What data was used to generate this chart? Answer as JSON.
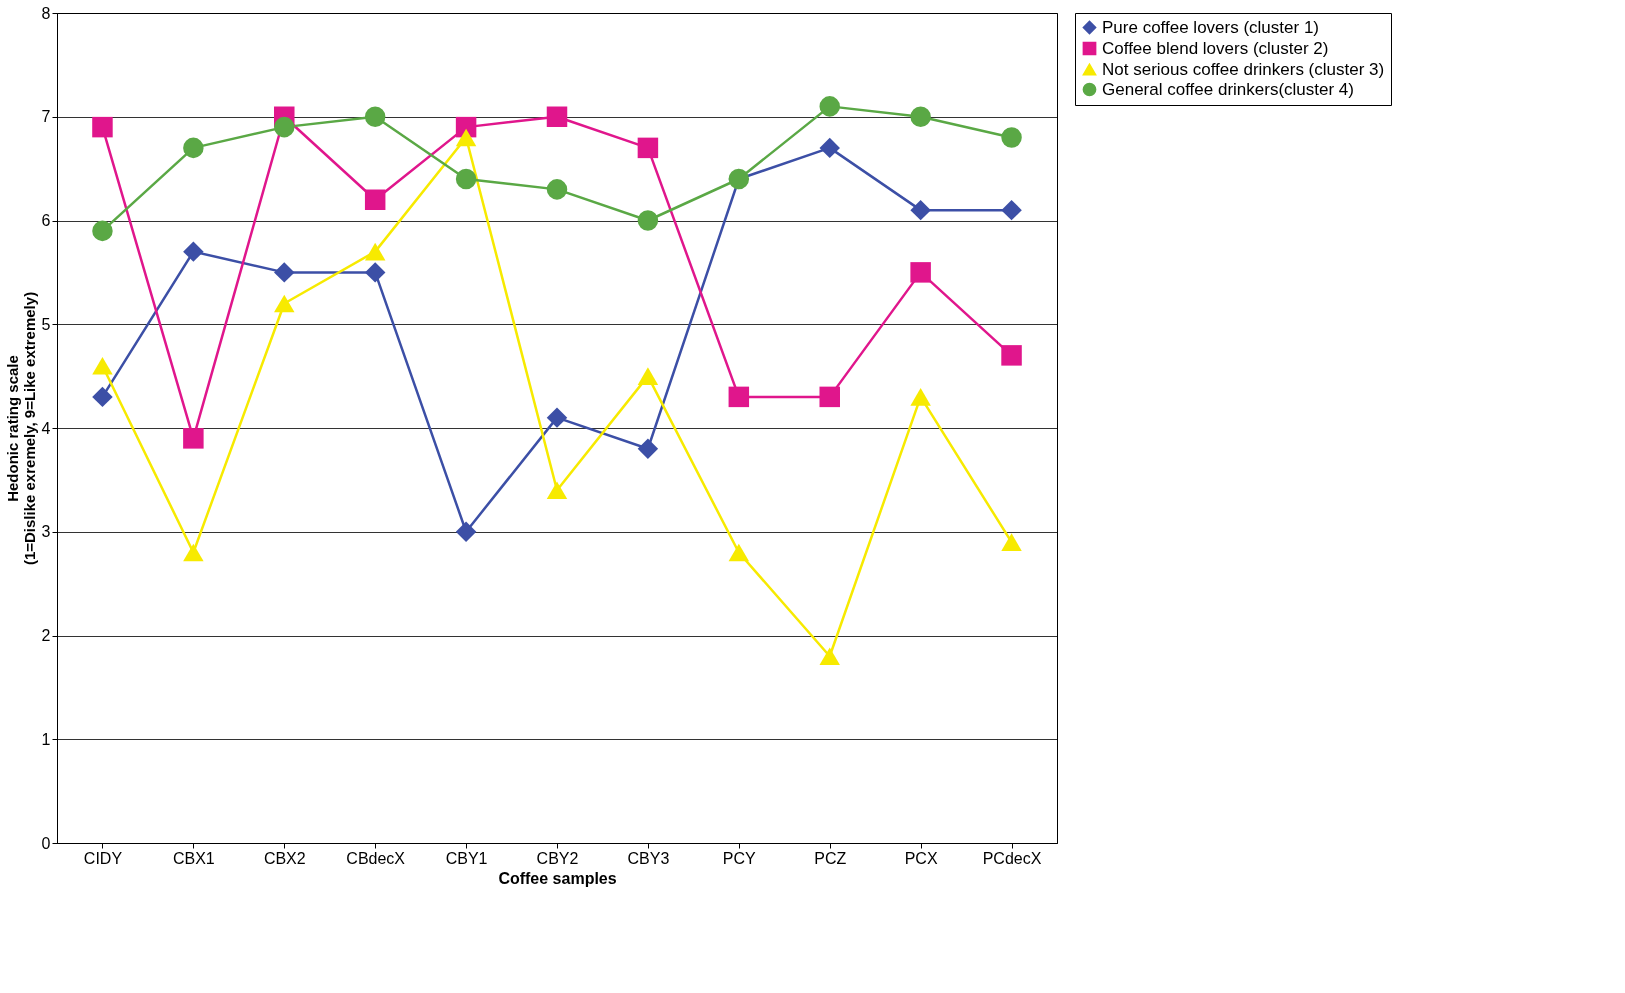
{
  "chart_data": {
    "type": "line",
    "xlabel": "Coffee samples",
    "ylabel": "Hedonic rating scale\n(1=Dislike exremely, 9=Like extremely)",
    "categories": [
      "CIDY",
      "CBX1",
      "CBX2",
      "CBdecX",
      "CBY1",
      "CBY2",
      "CBY3",
      "PCY",
      "PCZ",
      "PCX",
      "PCdecX"
    ],
    "ylim": [
      0,
      8
    ],
    "yticks": [
      0,
      1,
      2,
      3,
      4,
      5,
      6,
      7,
      8
    ],
    "grid": "y",
    "legend": "right",
    "line_style": "solid",
    "series": [
      {
        "name": "Pure coffee lovers (cluster 1)",
        "color": "#3c4fa6",
        "marker": "diamond",
        "values": [
          4.3,
          5.7,
          5.5,
          5.5,
          3.0,
          4.1,
          3.8,
          6.4,
          6.7,
          6.1,
          6.1
        ]
      },
      {
        "name": "Coffee blend lovers (cluster 2)",
        "color": "#e0168c",
        "marker": "square",
        "values": [
          6.9,
          3.9,
          7.0,
          6.2,
          6.9,
          7.0,
          6.7,
          4.3,
          4.3,
          5.5,
          4.7
        ]
      },
      {
        "name": "Not serious coffee drinkers (cluster 3)",
        "color": "#f7ea00",
        "marker": "triangle",
        "values": [
          4.6,
          2.8,
          5.2,
          5.7,
          6.8,
          3.4,
          4.5,
          2.8,
          1.8,
          4.3,
          2.9
        ]
      },
      {
        "name": "General coffee drinkers(cluster 4)",
        "color": "#5aa845",
        "marker": "circle",
        "values": [
          5.9,
          6.7,
          6.9,
          7.0,
          6.4,
          6.3,
          6.0,
          6.4,
          7.1,
          7.0,
          6.8
        ]
      }
    ]
  }
}
